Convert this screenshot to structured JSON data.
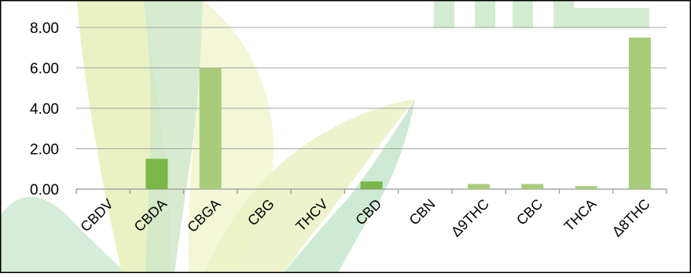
{
  "chart_data": {
    "type": "bar",
    "title": "",
    "xlabel": "",
    "ylabel": "",
    "categories": [
      "CBDV",
      "CBDA",
      "CBGA",
      "CBG",
      "THCV",
      "CBD",
      "CBN",
      "Δ9THC",
      "CBC",
      "THCA",
      "Δ8THC"
    ],
    "values": [
      0.0,
      1.5,
      6.0,
      0.0,
      0.0,
      0.38,
      0.0,
      0.25,
      0.25,
      0.15,
      7.5
    ],
    "ylim": [
      0,
      8
    ],
    "yticks": [
      0,
      2,
      4,
      6,
      8
    ],
    "ytick_labels": [
      "0.00",
      "2.00",
      "4.00",
      "6.00",
      "8.00"
    ],
    "grid": true,
    "legend": "none",
    "colors": {
      "bar_dark": "#7ab648",
      "bar_light": "#a8cc7a",
      "grid": "#a6a6a6",
      "text": "#000000",
      "frame": "#000000"
    },
    "bar_shades": [
      "dark",
      "dark",
      "light",
      "dark",
      "dark",
      "dark",
      "dark",
      "light",
      "light",
      "light",
      "light"
    ]
  }
}
